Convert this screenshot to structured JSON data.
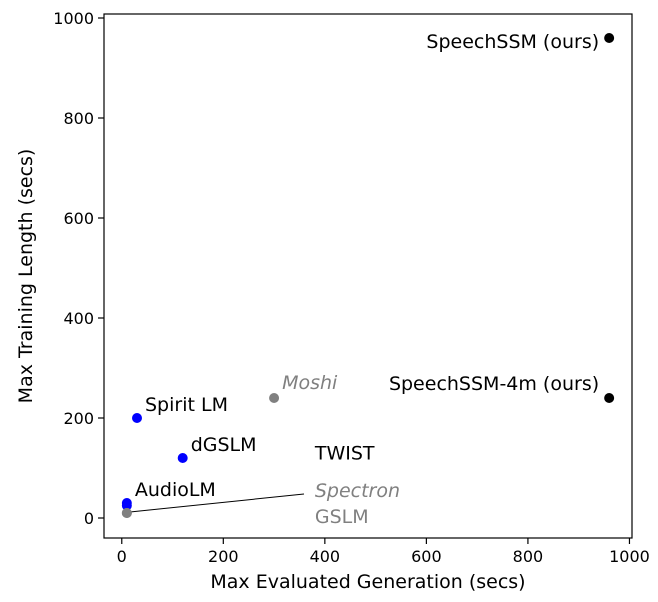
{
  "chart_data": {
    "type": "scatter",
    "title": "",
    "xlabel": "Max Evaluated Generation (secs)",
    "ylabel": "Max Training Length (secs)",
    "xlim": [
      -35,
      1005
    ],
    "ylim": [
      -40,
      1008
    ],
    "xticks": [
      0,
      200,
      400,
      600,
      800,
      1000
    ],
    "yticks": [
      0,
      200,
      400,
      600,
      800,
      1000
    ],
    "grid": false,
    "colors": {
      "ours": "#000000",
      "blue": "#0000ff",
      "gray": "#808080"
    },
    "points": [
      {
        "label": "SpeechSSM (ours)",
        "x": 960,
        "y": 960,
        "color": "#000000",
        "italic": false
      },
      {
        "label": "SpeechSSM-4m (ours)",
        "x": 960,
        "y": 240,
        "color": "#000000",
        "italic": false
      },
      {
        "label": "Moshi",
        "x": 300,
        "y": 240,
        "color": "#808080",
        "italic": true
      },
      {
        "label": "Spirit LM",
        "x": 30,
        "y": 200,
        "color": "#0000ff",
        "italic": false
      },
      {
        "label": "dGSLM",
        "x": 120,
        "y": 120,
        "color": "#0000ff",
        "italic": false
      },
      {
        "label": "AudioLM",
        "x": 10,
        "y": 30,
        "color": "#0000ff",
        "italic": false
      },
      {
        "label": "TWIST",
        "x": 10,
        "y": 25,
        "color": "#0000ff",
        "italic": false
      },
      {
        "label": "Spectron",
        "x": 10,
        "y": 10,
        "color": "#808080",
        "italic": true
      },
      {
        "label": "GSLM",
        "x": 10,
        "y": 10,
        "color": "#808080",
        "italic": false
      }
    ]
  }
}
